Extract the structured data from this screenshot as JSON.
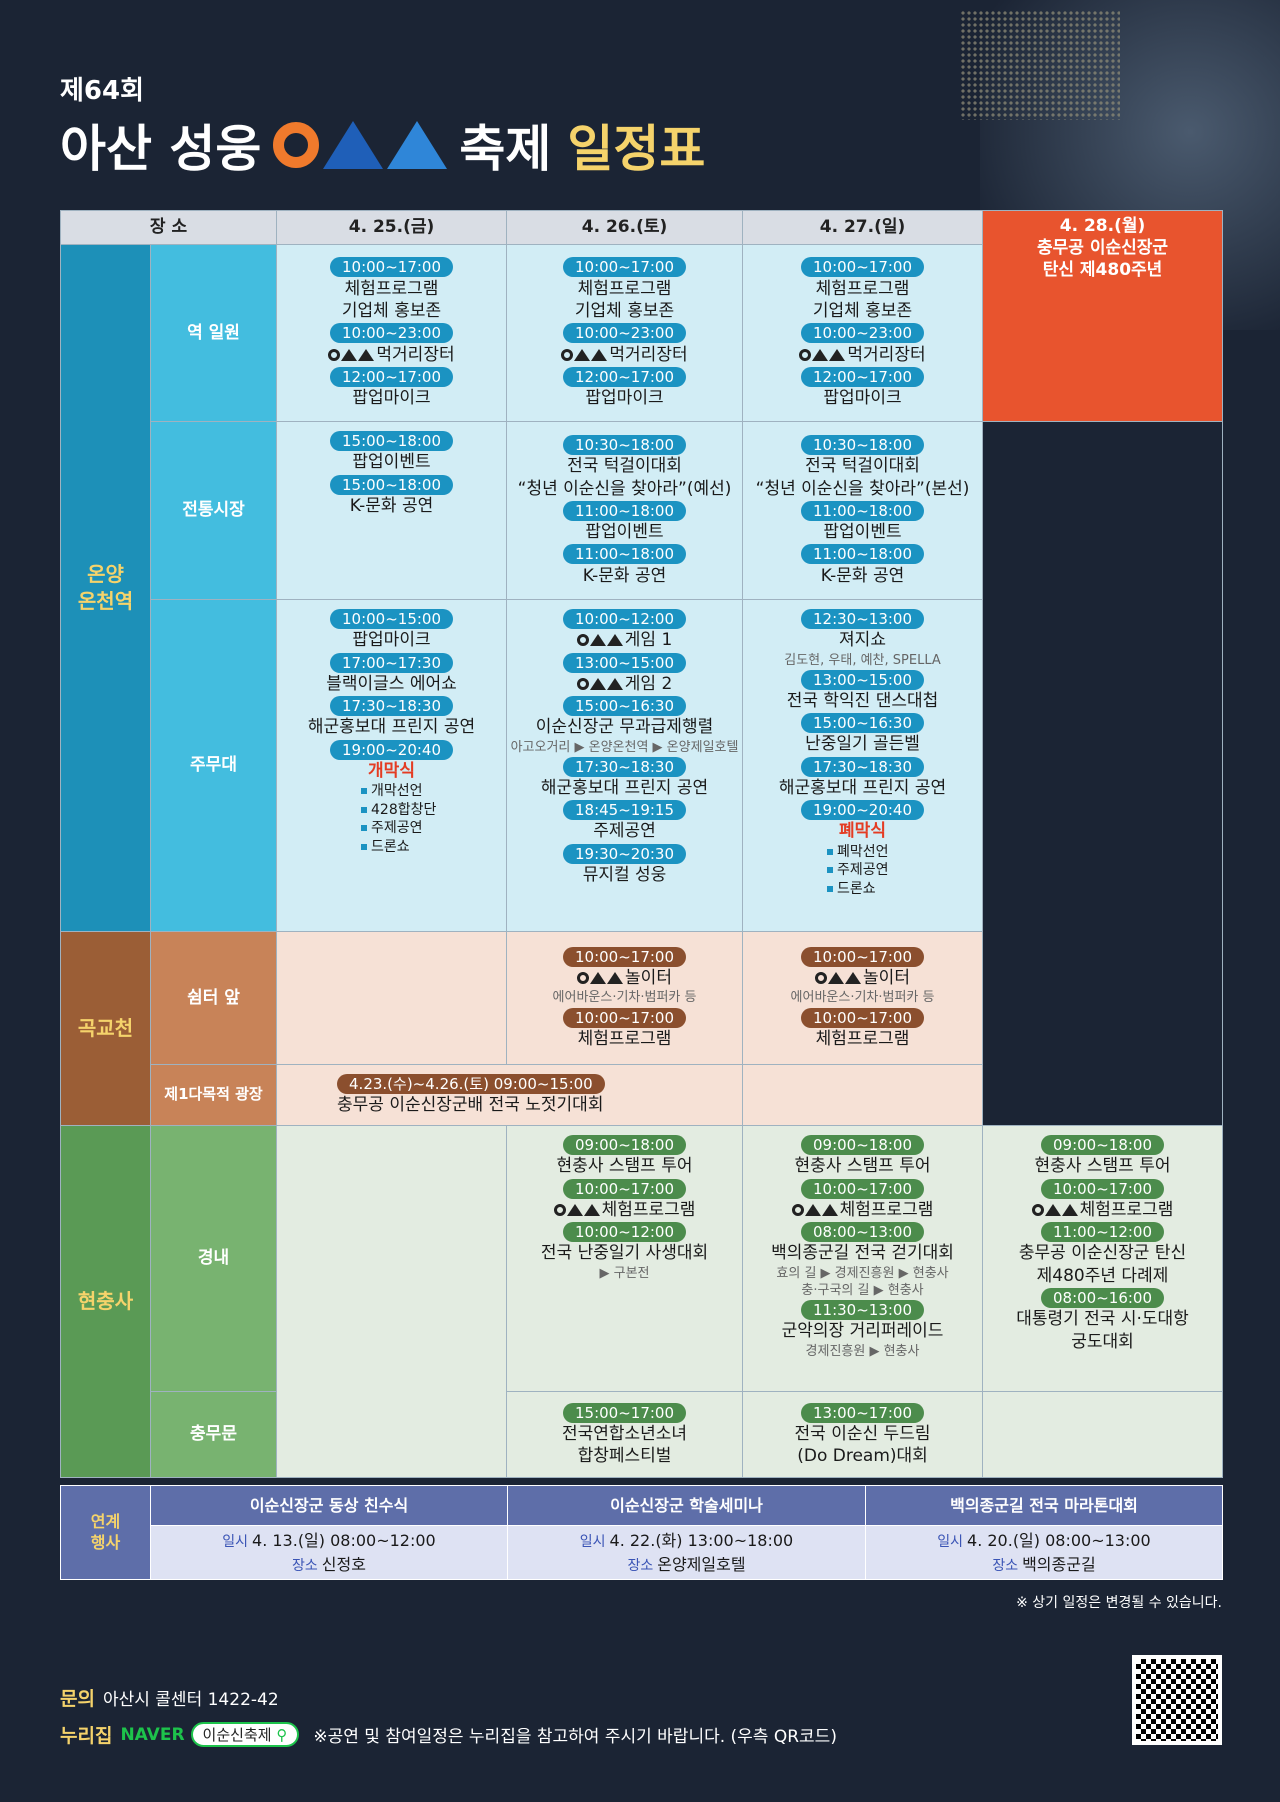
{
  "header": {
    "edition": "제64회",
    "title_a": "아산 성웅",
    "title_b": "축제",
    "title_c": "일정표"
  },
  "columns": {
    "place": "장 소",
    "d1": "4. 25.(금)",
    "d2": "4. 26.(토)",
    "d3": "4. 27.(일)",
    "d4": "4. 28.(월)",
    "d4_note1": "충무공 이순신장군",
    "d4_note2": "탄신 제480주년"
  },
  "areas": {
    "on": "온양\n온천역",
    "gok": "곡교천",
    "hyun": "현충사"
  },
  "subs": {
    "s1": "역 일원",
    "s2": "전통시장",
    "s3": "주무대",
    "s4": "쉼터 앞",
    "s5": "제1다목적 광장",
    "s6": "경내",
    "s7": "충무문"
  },
  "station": {
    "d1": [
      [
        "10:00~17:00",
        "체험프로그램"
      ],
      [
        "",
        "기업체 홍보존"
      ],
      [
        "10:00~23:00",
        "먹거리장터"
      ],
      [
        "12:00~17:00",
        "팝업마이크"
      ]
    ],
    "d2": [
      [
        "10:00~17:00",
        "체험프로그램"
      ],
      [
        "",
        "기업체 홍보존"
      ],
      [
        "10:00~23:00",
        "먹거리장터"
      ],
      [
        "12:00~17:00",
        "팝업마이크"
      ]
    ],
    "d3": [
      [
        "10:00~17:00",
        "체험프로그램"
      ],
      [
        "",
        "기업체 홍보존"
      ],
      [
        "10:00~23:00",
        "먹거리장터"
      ],
      [
        "12:00~17:00",
        "팝업마이크"
      ]
    ]
  },
  "market": {
    "d1": [
      [
        "15:00~18:00",
        "팝업이벤트"
      ],
      [
        "15:00~18:00",
        "K-문화 공연"
      ]
    ],
    "d2": [
      [
        "10:30~18:00",
        "전국 턱걸이대회"
      ],
      [
        "",
        "“청년 이순신을 찾아라”(예선)"
      ],
      [
        "11:00~18:00",
        "팝업이벤트"
      ],
      [
        "11:00~18:00",
        "K-문화 공연"
      ]
    ],
    "d3": [
      [
        "10:30~18:00",
        "전국 턱걸이대회"
      ],
      [
        "",
        "“청년 이순신을 찾아라”(본선)"
      ],
      [
        "11:00~18:00",
        "팝업이벤트"
      ],
      [
        "11:00~18:00",
        "K-문화 공연"
      ]
    ]
  },
  "main": {
    "d1": [
      [
        "10:00~15:00",
        "팝업마이크"
      ],
      [
        "17:00~17:30",
        "블랙이글스 에어쇼"
      ],
      [
        "17:30~18:30",
        "해군홍보대 프린지 공연"
      ],
      [
        "19:00~20:40",
        ""
      ]
    ],
    "d1_special": "개막식",
    "d1_items": [
      "개막선언",
      "428합창단",
      "주제공연",
      "드론쇼"
    ],
    "d2": [
      [
        "10:00~12:00",
        "게임 1"
      ],
      [
        "13:00~15:00",
        "게임 2"
      ],
      [
        "15:00~16:30",
        "이순신장군 무과급제행렬"
      ]
    ],
    "d2_route": "아고오거리 ▶ 온양온천역 ▶ 온양제일호텔",
    "d2b": [
      [
        "17:30~18:30",
        "해군홍보대 프린지 공연"
      ],
      [
        "18:45~19:15",
        "주제공연"
      ],
      [
        "19:30~20:30",
        "뮤지컬 성웅"
      ]
    ],
    "d3": [
      [
        "12:30~13:00",
        "져지쇼"
      ]
    ],
    "d3_note": "김도현, 우태, 예찬, SPELLA",
    "d3b": [
      [
        "13:00~15:00",
        "전국 학익진 댄스대첩"
      ],
      [
        "15:00~16:30",
        "난중일기 골든벨"
      ],
      [
        "17:30~18:30",
        "해군홍보대 프린지 공연"
      ],
      [
        "19:00~20:40",
        ""
      ]
    ],
    "d3_special": "폐막식",
    "d3_items": [
      "폐막선언",
      "주제공연",
      "드론쇼"
    ]
  },
  "rest": {
    "d2": [
      [
        "10:00~17:00",
        "놀이터"
      ]
    ],
    "d2_note": "에어바운스·기차·범퍼카 등",
    "d2b": [
      [
        "10:00~17:00",
        "체험프로그램"
      ]
    ],
    "d3": [
      [
        "10:00~17:00",
        "놀이터"
      ]
    ],
    "d3_note": "에어바운스·기차·범퍼카 등",
    "d3b": [
      [
        "10:00~17:00",
        "체험프로그램"
      ]
    ]
  },
  "plaza": {
    "time": "4.23.(수)~4.26.(토) 09:00~15:00",
    "event": "충무공 이순신장군배 전국 노젓기대회"
  },
  "precinct": {
    "d2": [
      [
        "09:00~18:00",
        "현충사 스탬프 투어"
      ],
      [
        "10:00~17:00",
        "체험프로그램"
      ],
      [
        "10:00~12:00",
        "전국 난중일기 사생대회"
      ]
    ],
    "d2_note": "▶ 구본전",
    "d3": [
      [
        "09:00~18:00",
        "현충사 스탬프 투어"
      ],
      [
        "10:00~17:00",
        "체험프로그램"
      ],
      [
        "08:00~13:00",
        "백의종군길 전국 걷기대회"
      ]
    ],
    "d3_note1": "효의 길 ▶ 경제진흥원 ▶ 현충사",
    "d3_note2": "충·구국의 길 ▶ 현충사",
    "d3b": [
      [
        "11:30~13:00",
        "군악의장 거리퍼레이드"
      ]
    ],
    "d3_note3": "경제진흥원 ▶ 현충사",
    "d4": [
      [
        "09:00~18:00",
        "현충사 스탬프 투어"
      ],
      [
        "10:00~17:00",
        "체험프로그램"
      ],
      [
        "11:00~12:00",
        "충무공 이순신장군 탄신"
      ]
    ],
    "d4_cont": "제480주년 다례제",
    "d4b": [
      [
        "08:00~16:00",
        "대통령기 전국 시·도대항"
      ]
    ],
    "d4_cont2": "궁도대회"
  },
  "gate": {
    "d2_time": "15:00~17:00",
    "d2_event1": "전국연합소년소녀",
    "d2_event2": "합창페스티벌",
    "d3_time": "13:00~17:00",
    "d3_event1": "전국 이순신 두드림",
    "d3_event2": "(Do Dream)대회"
  },
  "linked": {
    "label": "연계\n행사",
    "date_lbl": "일시",
    "place_lbl": "장소",
    "items": [
      {
        "title": "이순신장군 동상 친수식",
        "date": "4. 13.(일) 08:00~12:00",
        "place": "신정호"
      },
      {
        "title": "이순신장군 학술세미나",
        "date": "4. 22.(화) 13:00~18:00",
        "place": "온양제일호텔"
      },
      {
        "title": "백의종군길 전국 마라톤대회",
        "date": "4. 20.(일) 08:00~13:00",
        "place": "백의종군길"
      }
    ]
  },
  "disclaimer": "※ 상기 일정은 변경될 수 있습니다.",
  "footer": {
    "inq_label": "문의",
    "inq_text": "아산시 콜센터 1422-42",
    "web_label": "누리집",
    "naver": "NAVER",
    "search": "이순신축제",
    "web_note": "※공연 및 참여일정은 누리집을 참고하여 주시기 바랍니다. (우측 QR코드)"
  }
}
